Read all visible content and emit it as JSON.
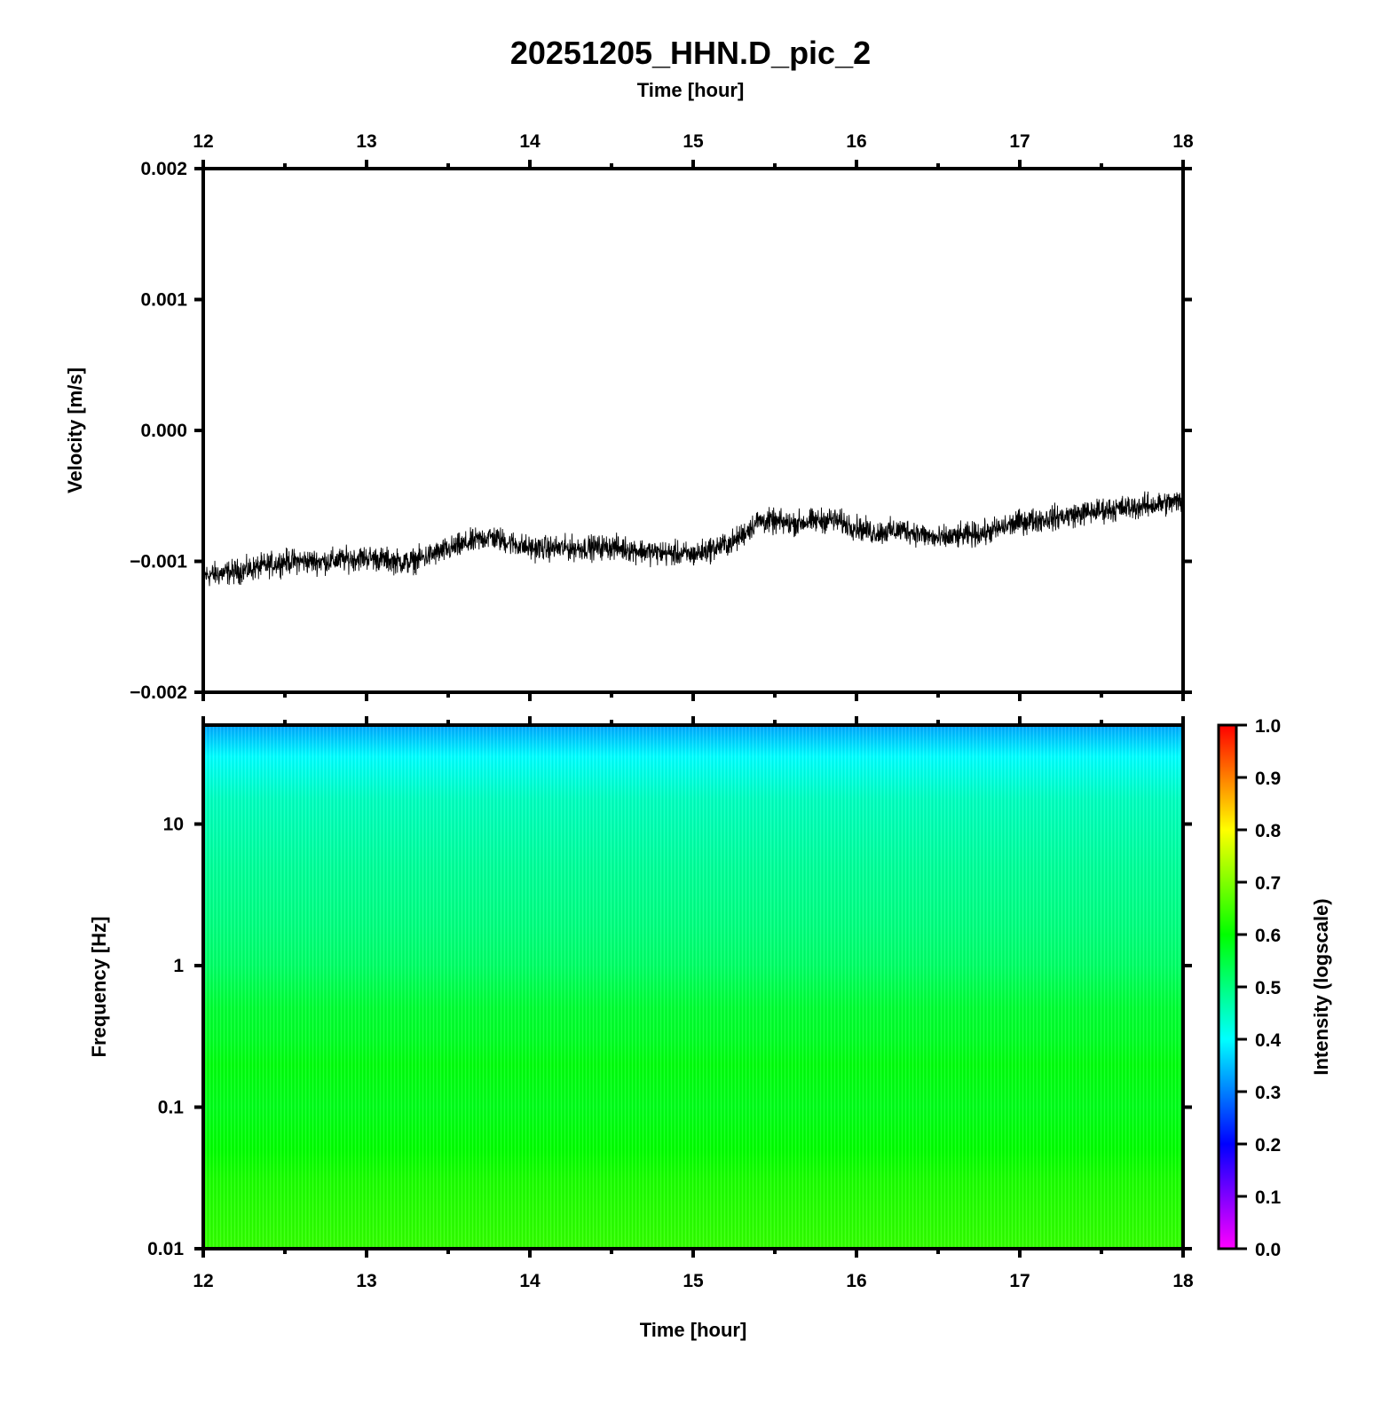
{
  "figure": {
    "title": "20251205_HHN.D_pic_2"
  },
  "chart_data": [
    {
      "type": "line",
      "panel": "waveform",
      "title": "20251205_HHN.D_pic_2",
      "top_xlabel": "Time [hour]",
      "xlabel": "",
      "ylabel": "Velocity [m/s]",
      "xlim": [
        12,
        18
      ],
      "ylim": [
        -0.002,
        0.002
      ],
      "x_ticks": [
        "12",
        "13",
        "14",
        "15",
        "16",
        "17",
        "18"
      ],
      "y_ticks": [
        "0.002",
        "0.001",
        "0.000",
        "−0.001",
        "−0.002"
      ],
      "grid": false,
      "legend": "none",
      "line_color": "#000000",
      "series": [
        {
          "x": [
            12.0,
            12.25,
            12.5,
            12.75,
            13.0,
            13.25,
            13.5,
            13.75,
            14.0,
            14.25,
            14.5,
            14.75,
            15.0,
            15.25,
            15.4,
            15.6,
            15.85,
            16.1,
            16.3,
            16.5,
            16.8,
            17.0,
            17.25,
            17.5,
            17.75,
            18.0
          ],
          "y": [
            -0.00111,
            -0.00107,
            -0.001,
            -0.001,
            -0.00097,
            -0.00101,
            -0.00091,
            -0.00081,
            -0.0009,
            -0.0009,
            -0.00089,
            -0.00093,
            -0.00095,
            -0.00085,
            -0.00069,
            -0.00071,
            -0.00068,
            -0.00078,
            -0.00076,
            -0.00083,
            -0.00078,
            -0.0007,
            -0.00066,
            -0.00061,
            -0.00058,
            -0.00054
          ],
          "noise_amplitude": 8e-05
        }
      ]
    },
    {
      "type": "heatmap",
      "panel": "spectrogram",
      "xlabel": "Time [hour]",
      "ylabel": "Frequency [Hz]",
      "xlim": [
        12,
        18
      ],
      "ylim": [
        0.01,
        50
      ],
      "y_scale": "log",
      "x_ticks": [
        "12",
        "13",
        "14",
        "15",
        "16",
        "17",
        "18"
      ],
      "y_ticks": [
        "10",
        "1",
        "0.1",
        "0.01"
      ],
      "y_tick_values": [
        10,
        1,
        0.1,
        0.01
      ],
      "colorbar": {
        "label": "Intensity (logscale)",
        "range": [
          0.0,
          1.0
        ],
        "ticks": [
          "1.0",
          "0.9",
          "0.8",
          "0.7",
          "0.6",
          "0.5",
          "0.4",
          "0.3",
          "0.2",
          "0.1",
          "0.0"
        ],
        "colormap": [
          "#ff00ff",
          "#0000ff",
          "#00ffff",
          "#00ff00",
          "#ffff00",
          "#ff0000"
        ]
      },
      "intensity_profile": {
        "frequency": [
          50,
          40,
          30,
          20,
          15,
          10,
          5,
          2,
          1,
          0.5,
          0.3,
          0.2,
          0.1,
          0.05,
          0.03,
          0.01
        ],
        "intensity": [
          0.33,
          0.36,
          0.4,
          0.43,
          0.45,
          0.46,
          0.48,
          0.5,
          0.52,
          0.56,
          0.57,
          0.59,
          0.58,
          0.6,
          0.62,
          0.64
        ]
      }
    }
  ]
}
